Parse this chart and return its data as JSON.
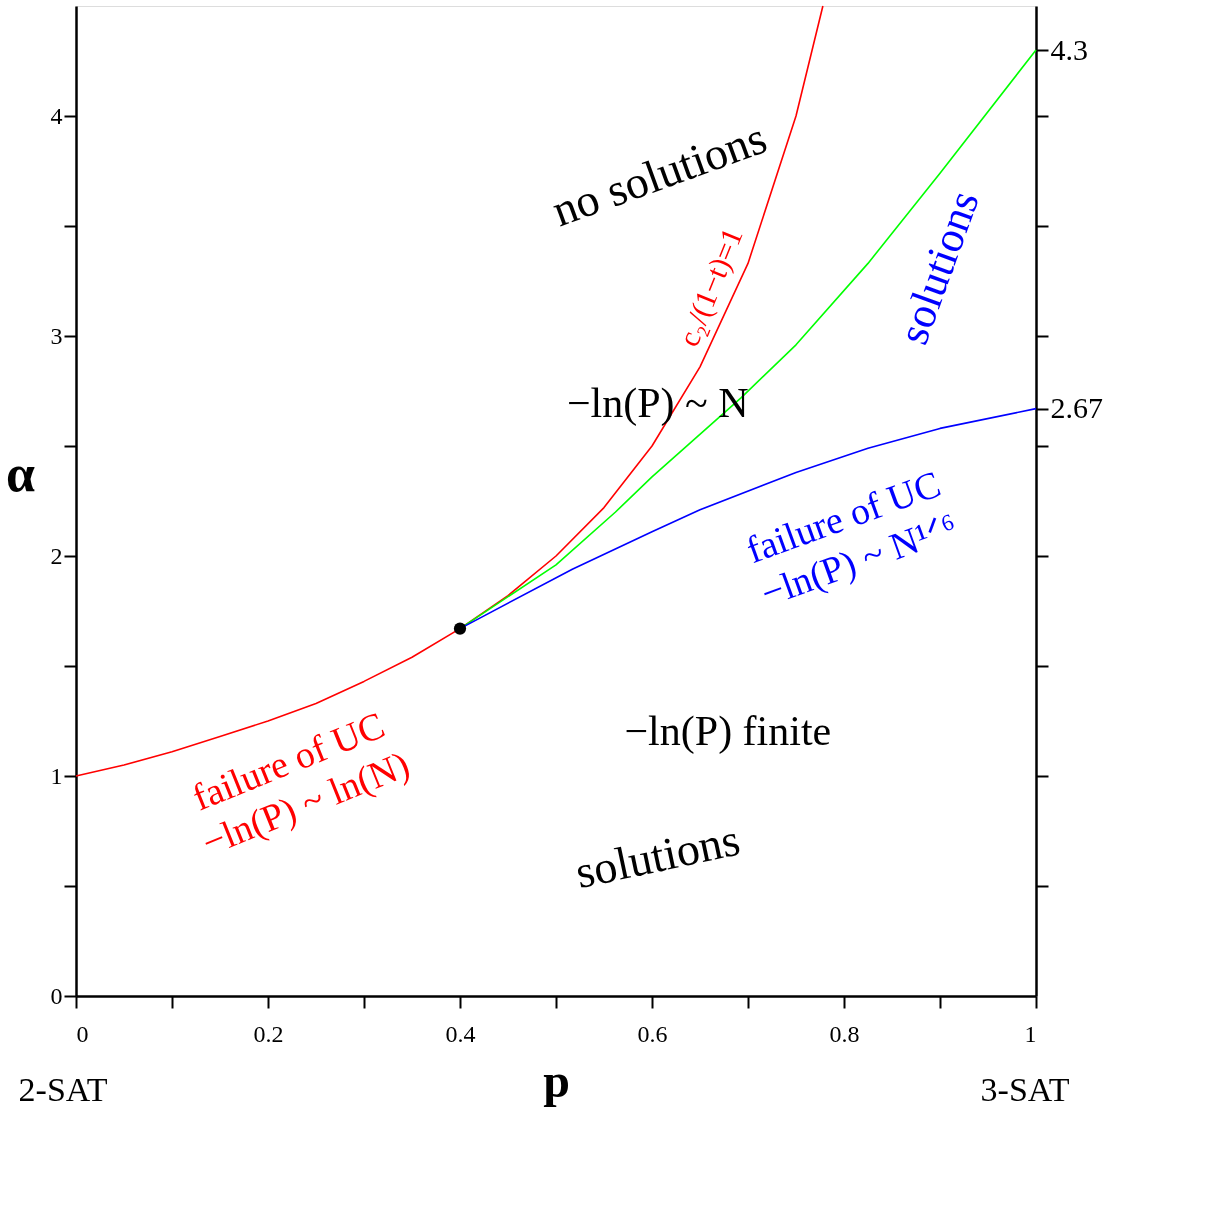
{
  "chart_data": {
    "type": "line",
    "xlabel": "p",
    "ylabel": "α",
    "xlim": [
      0,
      1
    ],
    "ylim": [
      0,
      4.5
    ],
    "xticks": [
      0,
      {
        "value": 0.1,
        "label": null
      },
      0.2,
      {
        "value": 0.3,
        "label": null
      },
      0.4,
      {
        "value": 0.5,
        "label": null
      },
      0.6,
      {
        "value": 0.7,
        "label": null
      },
      0.8,
      {
        "value": 0.9,
        "label": null
      },
      1
    ],
    "yticks": [
      0,
      {
        "value": 0.5,
        "label": null
      },
      1,
      {
        "value": 1.5,
        "label": null
      },
      2,
      {
        "value": 2.5,
        "label": null
      },
      3,
      {
        "value": 3.5,
        "label": null
      },
      4
    ],
    "y2lim": [
      0,
      4.5
    ],
    "y2ticks": [
      {
        "value": 0.5,
        "label": null
      },
      {
        "value": 1,
        "label": null
      },
      {
        "value": 1.5,
        "label": null
      },
      {
        "value": 2,
        "label": null
      },
      {
        "value": 2.5,
        "label": null
      },
      2.67,
      {
        "value": 3,
        "label": null
      },
      {
        "value": 3.5,
        "label": null
      },
      {
        "value": 4,
        "label": null
      },
      4.3
    ],
    "grid": false,
    "marker": "none",
    "line_style": "solid",
    "series": [
      {
        "color": "#ff0000",
        "x": [
          0,
          0.05,
          0.1,
          0.15,
          0.2,
          0.25,
          0.3,
          0.35,
          0.4,
          0.45,
          0.5,
          0.55,
          0.6,
          0.65,
          0.7,
          0.75,
          0.778
        ],
        "values": [
          1.0,
          1.05,
          1.11,
          1.18,
          1.25,
          1.33,
          1.43,
          1.54,
          1.67,
          1.82,
          2.0,
          2.22,
          2.5,
          2.86,
          3.33,
          4.0,
          4.5
        ]
      },
      {
        "color": "#00ff00",
        "x": [
          0.4,
          0.5,
          0.562,
          0.6,
          0.693,
          0.75,
          0.825,
          0.9,
          1.0
        ],
        "values": [
          1.67,
          1.96,
          2.2,
          2.36,
          2.72,
          2.96,
          3.33,
          3.74,
          4.3
        ]
      },
      {
        "color": "#0000ff",
        "x": [
          0.4,
          0.517,
          0.6,
          0.65,
          0.75,
          0.825,
          0.9,
          1.0
        ],
        "values": [
          1.67,
          1.94,
          2.11,
          2.21,
          2.38,
          2.49,
          2.58,
          2.67
        ]
      },
      {
        "type": "scatter",
        "marker": "circle",
        "color": "#000000",
        "x": [
          0.4
        ],
        "values": [
          1.67
        ]
      }
    ],
    "annotations": [
      "no solutions",
      "c₂/(1−t)=1",
      "−ln(P) ~ N",
      "solutions",
      "failure of UC\n−ln(P) ~ N¹ᐟ⁶",
      "−ln(P) finite",
      "solutions",
      "failure of UC\n−ln(P) ~ ln(N)",
      "2-SAT",
      "3-SAT"
    ]
  }
}
